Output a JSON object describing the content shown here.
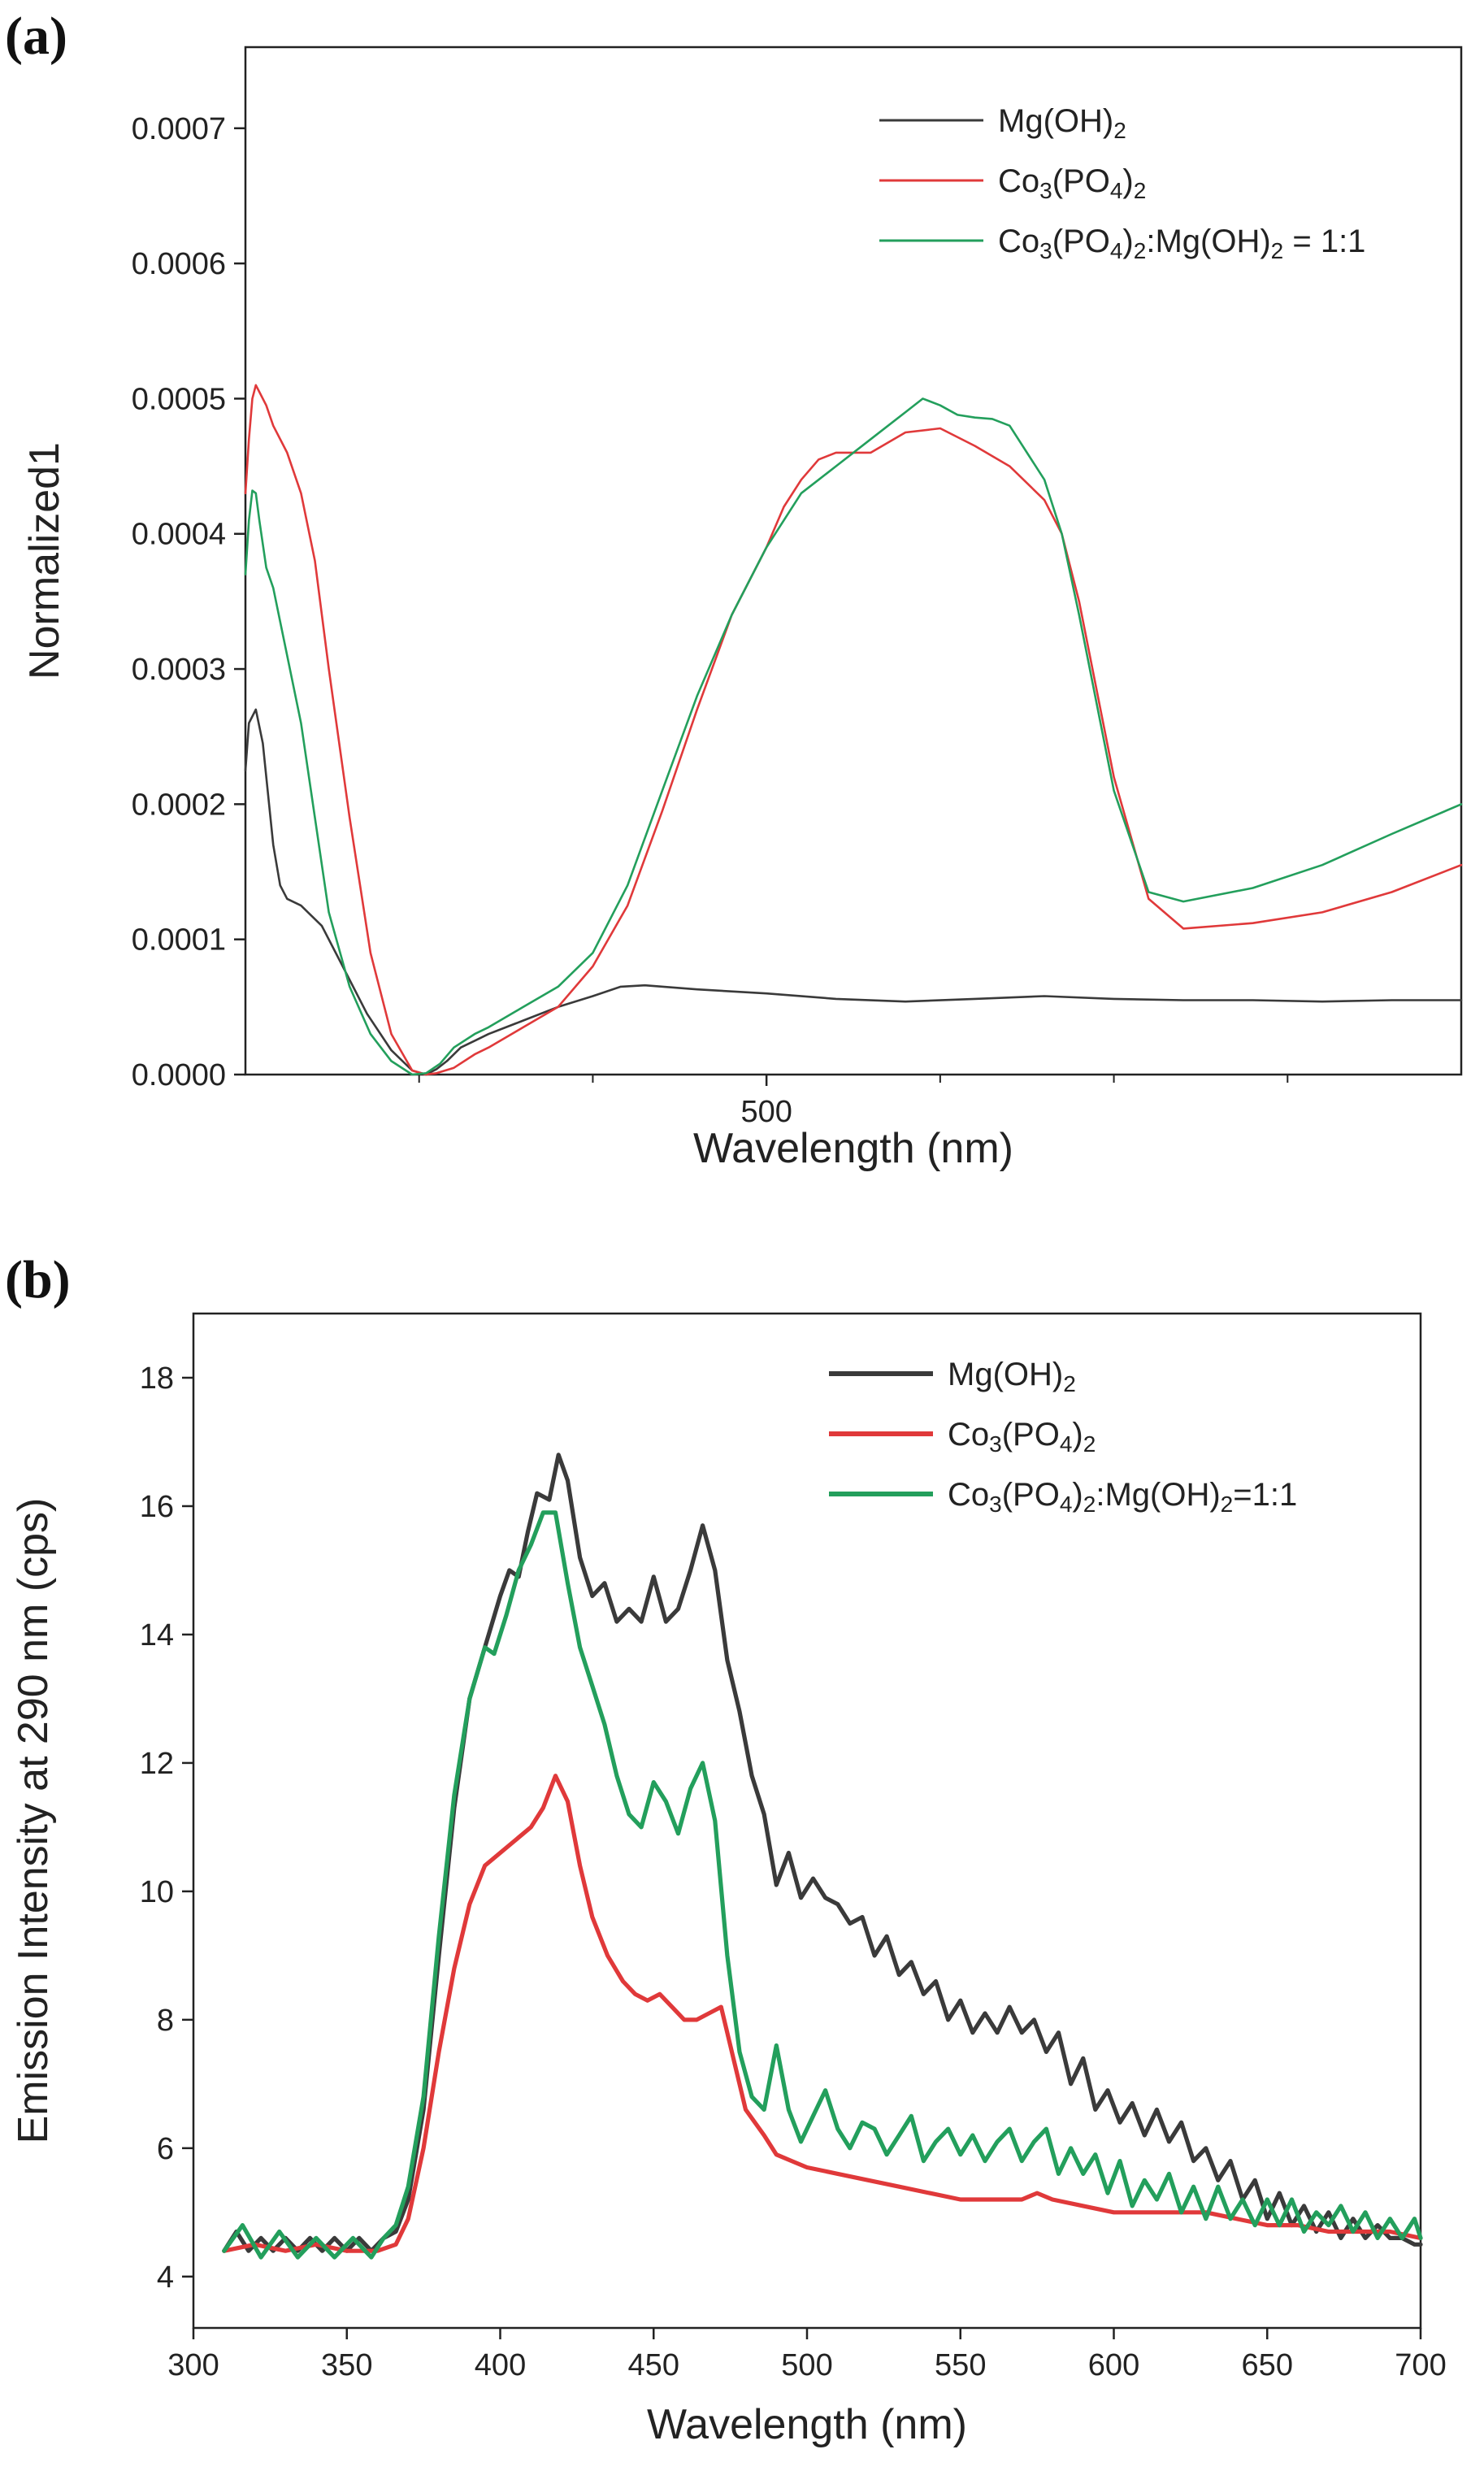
{
  "panels": {
    "a": {
      "label": "(a)"
    },
    "b": {
      "label": "(b)"
    }
  },
  "colors": {
    "mg": "#3a3a3a",
    "co": "#e0393a",
    "mix": "#239f5c"
  },
  "chart_data": [
    {
      "type": "line",
      "panel": "(a)",
      "xlabel": "Wavelength (nm)",
      "ylabel": "Normalized1",
      "xlim": [
        350,
        700
      ],
      "ylim": [
        0,
        0.00076
      ],
      "xticks": [
        500
      ],
      "xticks_minor": [
        400,
        450,
        550,
        600,
        650
      ],
      "yticks": [
        0.0,
        0.0001,
        0.0002,
        0.0003,
        0.0004,
        0.0005,
        0.0006,
        0.0007
      ],
      "ytick_labels": [
        "0.0000",
        "0.0001",
        "0.0002",
        "0.0003",
        "0.0004",
        "0.0005",
        "0.0006",
        "0.0007"
      ],
      "legend": {
        "placement": "top-right",
        "entries": [
          {
            "base": "Mg(OH)",
            "sub": "2",
            "color_key": "mg"
          },
          {
            "formula": [
              [
                "Co",
                ""
              ],
              [
                "3",
                "sub"
              ],
              [
                "(PO",
                ""
              ],
              [
                "4",
                "sub"
              ],
              [
                ")",
                ""
              ],
              [
                "2",
                "sub"
              ]
            ],
            "color_key": "co"
          },
          {
            "formula": [
              [
                "Co",
                ""
              ],
              [
                "3",
                "sub"
              ],
              [
                "(PO",
                ""
              ],
              [
                "4",
                "sub"
              ],
              [
                ")",
                ""
              ],
              [
                "2",
                "sub"
              ],
              [
                ":Mg(OH)",
                ""
              ],
              [
                "2",
                "sub"
              ],
              [
                " = 1:1",
                ""
              ]
            ],
            "color_key": "mix"
          }
        ]
      },
      "series": [
        {
          "name": "Mg(OH)2",
          "color_key": "mg",
          "x": [
            350,
            351,
            353,
            355,
            358,
            360,
            362,
            366,
            372,
            378,
            385,
            392,
            398,
            402,
            405,
            408,
            412,
            416,
            420,
            430,
            440,
            450,
            458,
            465,
            480,
            500,
            520,
            540,
            560,
            580,
            600,
            620,
            640,
            660,
            680,
            700
          ],
          "y": [
            0.000225,
            0.00026,
            0.00027,
            0.000245,
            0.00017,
            0.00014,
            0.00013,
            0.000125,
            0.00011,
            8e-05,
            4.5e-05,
            1.8e-05,
            3e-06,
            0.0,
            4e-06,
            1e-05,
            2e-05,
            2.5e-05,
            3e-05,
            4e-05,
            5e-05,
            5.8e-05,
            6.5e-05,
            6.6e-05,
            6.3e-05,
            6e-05,
            5.6e-05,
            5.4e-05,
            5.6e-05,
            5.8e-05,
            5.6e-05,
            5.5e-05,
            5.5e-05,
            5.4e-05,
            5.5e-05,
            5.5e-05
          ]
        },
        {
          "name": "Co3(PO4)2",
          "color_key": "co",
          "x": [
            350,
            351,
            352,
            353,
            354,
            356,
            358,
            362,
            366,
            370,
            374,
            380,
            386,
            392,
            398,
            402,
            405,
            410,
            416,
            420,
            430,
            440,
            450,
            460,
            470,
            480,
            490,
            500,
            505,
            510,
            515,
            520,
            530,
            540,
            550,
            560,
            570,
            580,
            585,
            590,
            600,
            610,
            620,
            640,
            660,
            680,
            700
          ],
          "y": [
            0.00043,
            0.00047,
            0.0005,
            0.00051,
            0.000505,
            0.000495,
            0.00048,
            0.00046,
            0.00043,
            0.00038,
            0.0003,
            0.00019,
            9e-05,
            3e-05,
            3e-06,
            0.0,
            1e-06,
            5e-06,
            1.5e-05,
            2e-05,
            3.5e-05,
            5e-05,
            8e-05,
            0.000125,
            0.000195,
            0.00027,
            0.00034,
            0.00039,
            0.00042,
            0.00044,
            0.000455,
            0.00046,
            0.00046,
            0.000475,
            0.000478,
            0.000465,
            0.00045,
            0.000425,
            0.0004,
            0.00035,
            0.00022,
            0.00013,
            0.000108,
            0.000112,
            0.00012,
            0.000135,
            0.000155
          ]
        },
        {
          "name": "Co3(PO4)2:Mg(OH)2 = 1:1",
          "color_key": "mix",
          "x": [
            350,
            351,
            352,
            353,
            354,
            356,
            358,
            362,
            366,
            370,
            374,
            380,
            386,
            392,
            398,
            402,
            406,
            410,
            416,
            420,
            430,
            440,
            450,
            460,
            470,
            480,
            490,
            500,
            510,
            515,
            520,
            530,
            540,
            545,
            550,
            555,
            560,
            565,
            570,
            580,
            585,
            590,
            600,
            610,
            620,
            640,
            660,
            680,
            700
          ],
          "y": [
            0.00037,
            0.00041,
            0.000432,
            0.00043,
            0.00041,
            0.000375,
            0.00036,
            0.00031,
            0.00026,
            0.00019,
            0.00012,
            6.5e-05,
            3e-05,
            1e-05,
            0.0,
            1e-06,
            8e-06,
            2e-05,
            3e-05,
            3.5e-05,
            5e-05,
            6.5e-05,
            9e-05,
            0.00014,
            0.00021,
            0.00028,
            0.00034,
            0.00039,
            0.00043,
            0.00044,
            0.00045,
            0.00047,
            0.00049,
            0.0005,
            0.000495,
            0.000488,
            0.000486,
            0.000485,
            0.00048,
            0.00044,
            0.0004,
            0.00034,
            0.00021,
            0.000135,
            0.000128,
            0.000138,
            0.000155,
            0.000178,
            0.0002
          ]
        }
      ]
    },
    {
      "type": "line",
      "panel": "(b)",
      "xlabel": "Wavelength (nm)",
      "ylabel": "Emission Intensity at 290 nm (cps)",
      "xlim": [
        300,
        700
      ],
      "ylim": [
        3.2,
        19
      ],
      "xticks": [
        300,
        350,
        400,
        450,
        500,
        550,
        600,
        650,
        700
      ],
      "yticks": [
        4,
        6,
        8,
        10,
        12,
        14,
        16,
        18
      ],
      "legend": {
        "placement": "top-right",
        "entries": [
          {
            "formula": [
              [
                "Mg(OH)",
                ""
              ],
              [
                "2",
                "sub"
              ]
            ],
            "color_key": "mg"
          },
          {
            "formula": [
              [
                "Co",
                ""
              ],
              [
                "3",
                "sub"
              ],
              [
                "(PO",
                ""
              ],
              [
                "4",
                "sub"
              ],
              [
                ")",
                ""
              ],
              [
                "2",
                "sub"
              ]
            ],
            "color_key": "co"
          },
          {
            "formula": [
              [
                "Co",
                ""
              ],
              [
                "3",
                "sub"
              ],
              [
                "(PO",
                ""
              ],
              [
                "4",
                "sub"
              ],
              [
                ")",
                ""
              ],
              [
                "2",
                "sub"
              ],
              [
                ":Mg(OH)",
                ""
              ],
              [
                "2",
                "sub"
              ],
              [
                "=1:1",
                ""
              ]
            ],
            "color_key": "mix"
          }
        ]
      },
      "series": [
        {
          "name": "Mg(OH)2",
          "color_key": "mg",
          "x": [
            310,
            314,
            318,
            322,
            326,
            330,
            334,
            338,
            342,
            346,
            350,
            354,
            358,
            362,
            366,
            370,
            375,
            380,
            385,
            390,
            395,
            400,
            403,
            406,
            409,
            412,
            416,
            419,
            422,
            426,
            430,
            434,
            438,
            442,
            446,
            450,
            454,
            458,
            462,
            466,
            470,
            474,
            478,
            482,
            486,
            490,
            494,
            498,
            502,
            506,
            510,
            514,
            518,
            522,
            526,
            530,
            534,
            538,
            542,
            546,
            550,
            554,
            558,
            562,
            566,
            570,
            574,
            578,
            582,
            586,
            590,
            594,
            598,
            602,
            606,
            610,
            614,
            618,
            622,
            626,
            630,
            634,
            638,
            642,
            646,
            650,
            654,
            658,
            662,
            666,
            670,
            674,
            678,
            682,
            686,
            690,
            694,
            698,
            700
          ],
          "y": [
            4.4,
            4.7,
            4.4,
            4.6,
            4.4,
            4.6,
            4.4,
            4.6,
            4.4,
            4.6,
            4.4,
            4.6,
            4.4,
            4.6,
            4.7,
            5.2,
            6.6,
            9.0,
            11.3,
            13.0,
            13.8,
            14.6,
            15.0,
            14.9,
            15.6,
            16.2,
            16.1,
            16.8,
            16.4,
            15.2,
            14.6,
            14.8,
            14.2,
            14.4,
            14.2,
            14.9,
            14.2,
            14.4,
            15.0,
            15.7,
            15.0,
            13.6,
            12.8,
            11.8,
            11.2,
            10.1,
            10.6,
            9.9,
            10.2,
            9.9,
            9.8,
            9.5,
            9.6,
            9.0,
            9.3,
            8.7,
            8.9,
            8.4,
            8.6,
            8.0,
            8.3,
            7.8,
            8.1,
            7.8,
            8.2,
            7.8,
            8.0,
            7.5,
            7.8,
            7.0,
            7.4,
            6.6,
            6.9,
            6.4,
            6.7,
            6.2,
            6.6,
            6.1,
            6.4,
            5.8,
            6.0,
            5.5,
            5.8,
            5.2,
            5.5,
            4.9,
            5.3,
            4.8,
            5.1,
            4.7,
            5.0,
            4.6,
            4.9,
            4.6,
            4.8,
            4.6,
            4.6,
            4.5,
            4.5
          ]
        },
        {
          "name": "Co3(PO4)2",
          "color_key": "co",
          "x": [
            310,
            320,
            330,
            340,
            350,
            360,
            366,
            370,
            375,
            380,
            385,
            390,
            395,
            400,
            405,
            410,
            414,
            418,
            422,
            426,
            430,
            435,
            440,
            444,
            448,
            452,
            456,
            460,
            464,
            468,
            472,
            476,
            480,
            486,
            490,
            495,
            500,
            510,
            520,
            530,
            540,
            550,
            560,
            570,
            575,
            580,
            590,
            600,
            610,
            620,
            630,
            640,
            650,
            660,
            670,
            680,
            690,
            700
          ],
          "y": [
            4.4,
            4.5,
            4.4,
            4.5,
            4.4,
            4.4,
            4.5,
            4.9,
            6.0,
            7.5,
            8.8,
            9.8,
            10.4,
            10.6,
            10.8,
            11.0,
            11.3,
            11.8,
            11.4,
            10.4,
            9.6,
            9.0,
            8.6,
            8.4,
            8.3,
            8.4,
            8.2,
            8.0,
            8.0,
            8.1,
            8.2,
            7.4,
            6.6,
            6.2,
            5.9,
            5.8,
            5.7,
            5.6,
            5.5,
            5.4,
            5.3,
            5.2,
            5.2,
            5.2,
            5.3,
            5.2,
            5.1,
            5.0,
            5.0,
            5.0,
            5.0,
            4.9,
            4.8,
            4.8,
            4.7,
            4.7,
            4.7,
            4.6
          ]
        },
        {
          "name": "Co3(PO4)2:Mg(OH)2=1:1",
          "color_key": "mix",
          "x": [
            310,
            316,
            322,
            328,
            334,
            340,
            346,
            352,
            358,
            362,
            366,
            370,
            375,
            380,
            385,
            390,
            395,
            398,
            402,
            406,
            410,
            414,
            418,
            422,
            426,
            430,
            434,
            438,
            442,
            446,
            450,
            454,
            458,
            462,
            466,
            470,
            474,
            478,
            482,
            486,
            490,
            494,
            498,
            502,
            506,
            510,
            514,
            518,
            522,
            526,
            530,
            534,
            538,
            542,
            546,
            550,
            554,
            558,
            562,
            566,
            570,
            574,
            578,
            582,
            586,
            590,
            594,
            598,
            602,
            606,
            610,
            614,
            618,
            622,
            626,
            630,
            634,
            638,
            642,
            646,
            650,
            654,
            658,
            662,
            666,
            670,
            674,
            678,
            682,
            686,
            690,
            694,
            698,
            700
          ],
          "y": [
            4.4,
            4.8,
            4.3,
            4.7,
            4.3,
            4.6,
            4.3,
            4.6,
            4.3,
            4.6,
            4.8,
            5.4,
            6.8,
            9.3,
            11.5,
            13.0,
            13.8,
            13.7,
            14.3,
            15.0,
            15.4,
            15.9,
            15.9,
            14.8,
            13.8,
            13.2,
            12.6,
            11.8,
            11.2,
            11.0,
            11.7,
            11.4,
            10.9,
            11.6,
            12.0,
            11.1,
            9.0,
            7.5,
            6.8,
            6.6,
            7.6,
            6.6,
            6.1,
            6.5,
            6.9,
            6.3,
            6.0,
            6.4,
            6.3,
            5.9,
            6.2,
            6.5,
            5.8,
            6.1,
            6.3,
            5.9,
            6.2,
            5.8,
            6.1,
            6.3,
            5.8,
            6.1,
            6.3,
            5.6,
            6.0,
            5.6,
            5.9,
            5.3,
            5.8,
            5.1,
            5.5,
            5.2,
            5.6,
            5.0,
            5.4,
            4.9,
            5.4,
            4.9,
            5.2,
            4.8,
            5.2,
            4.8,
            5.2,
            4.7,
            5.0,
            4.8,
            5.1,
            4.7,
            5.0,
            4.6,
            4.9,
            4.6,
            4.9,
            4.6
          ]
        }
      ]
    }
  ]
}
